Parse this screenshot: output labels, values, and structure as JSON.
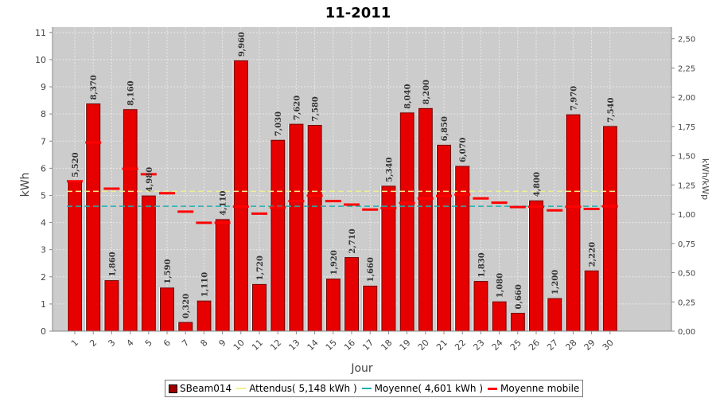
{
  "chart_data": {
    "type": "bar",
    "title": "11-2011",
    "xlabel": "Jour",
    "ylabel": "kWh",
    "y2label": "kWh/kWp",
    "ylim": [
      0,
      11.2
    ],
    "y2lim": [
      0,
      2.6
    ],
    "yticks": [
      "0",
      "1",
      "2",
      "3",
      "4",
      "5",
      "6",
      "7",
      "8",
      "9",
      "10",
      "11"
    ],
    "y2ticks": [
      "0,00",
      "0,25",
      "0,50",
      "0,75",
      "1,00",
      "1,25",
      "1,50",
      "1,75",
      "2,00",
      "2,25",
      "2,50"
    ],
    "categories": [
      "1",
      "2",
      "3",
      "4",
      "5",
      "6",
      "7",
      "8",
      "9",
      "10",
      "11",
      "12",
      "13",
      "14",
      "15",
      "16",
      "17",
      "18",
      "19",
      "20",
      "21",
      "22",
      "23",
      "24",
      "25",
      "26",
      "27",
      "28",
      "29",
      "30"
    ],
    "series": [
      {
        "name": "SBeam014",
        "values": [
          5.52,
          8.37,
          1.86,
          8.16,
          4.98,
          1.59,
          0.32,
          1.11,
          4.11,
          9.96,
          1.72,
          7.03,
          7.62,
          7.58,
          1.92,
          2.71,
          1.66,
          5.34,
          8.04,
          8.2,
          6.85,
          6.07,
          1.83,
          1.08,
          0.66,
          4.8,
          1.2,
          7.97,
          2.22,
          7.54
        ],
        "labels": [
          "5,520",
          "8,370",
          "1,860",
          "8,160",
          "4,980",
          "1,590",
          "0,320",
          "1,110",
          "4,110",
          "9,960",
          "1,720",
          "7,030",
          "7,620",
          "7,580",
          "1,920",
          "2,710",
          "1,660",
          "5,340",
          "8,040",
          "8,200",
          "6,850",
          "6,070",
          "1,830",
          "1,080",
          "0,660",
          "4,800",
          "1,200",
          "7,970",
          "2,220",
          "7,540"
        ]
      },
      {
        "name": "Attendus( 5,148 kWh )",
        "value": 5.148
      },
      {
        "name": "Moyenne( 4,601 kWh )",
        "value": 4.601
      },
      {
        "name": "Moyenne mobile",
        "values": [
          5.52,
          6.95,
          5.25,
          5.98,
          5.78,
          5.08,
          4.4,
          3.99,
          3.99,
          4.59,
          4.33,
          4.55,
          4.79,
          4.99,
          4.79,
          4.66,
          4.48,
          4.53,
          4.72,
          4.89,
          4.98,
          5.03,
          4.89,
          4.73,
          4.57,
          4.58,
          4.45,
          4.58,
          4.5,
          4.6
        ]
      }
    ],
    "colors": {
      "bar_fill": "#e60000",
      "bar_border": "#6b0000",
      "bar_shadow": "#ffffff",
      "attendus": "#f0ef90",
      "moyenne": "#20b0b0",
      "moyenne_mobile": "#ff0000",
      "plot_bg": "#cccccc",
      "grid": "#e8e8e8"
    },
    "grid": true,
    "legend": "bottom"
  }
}
